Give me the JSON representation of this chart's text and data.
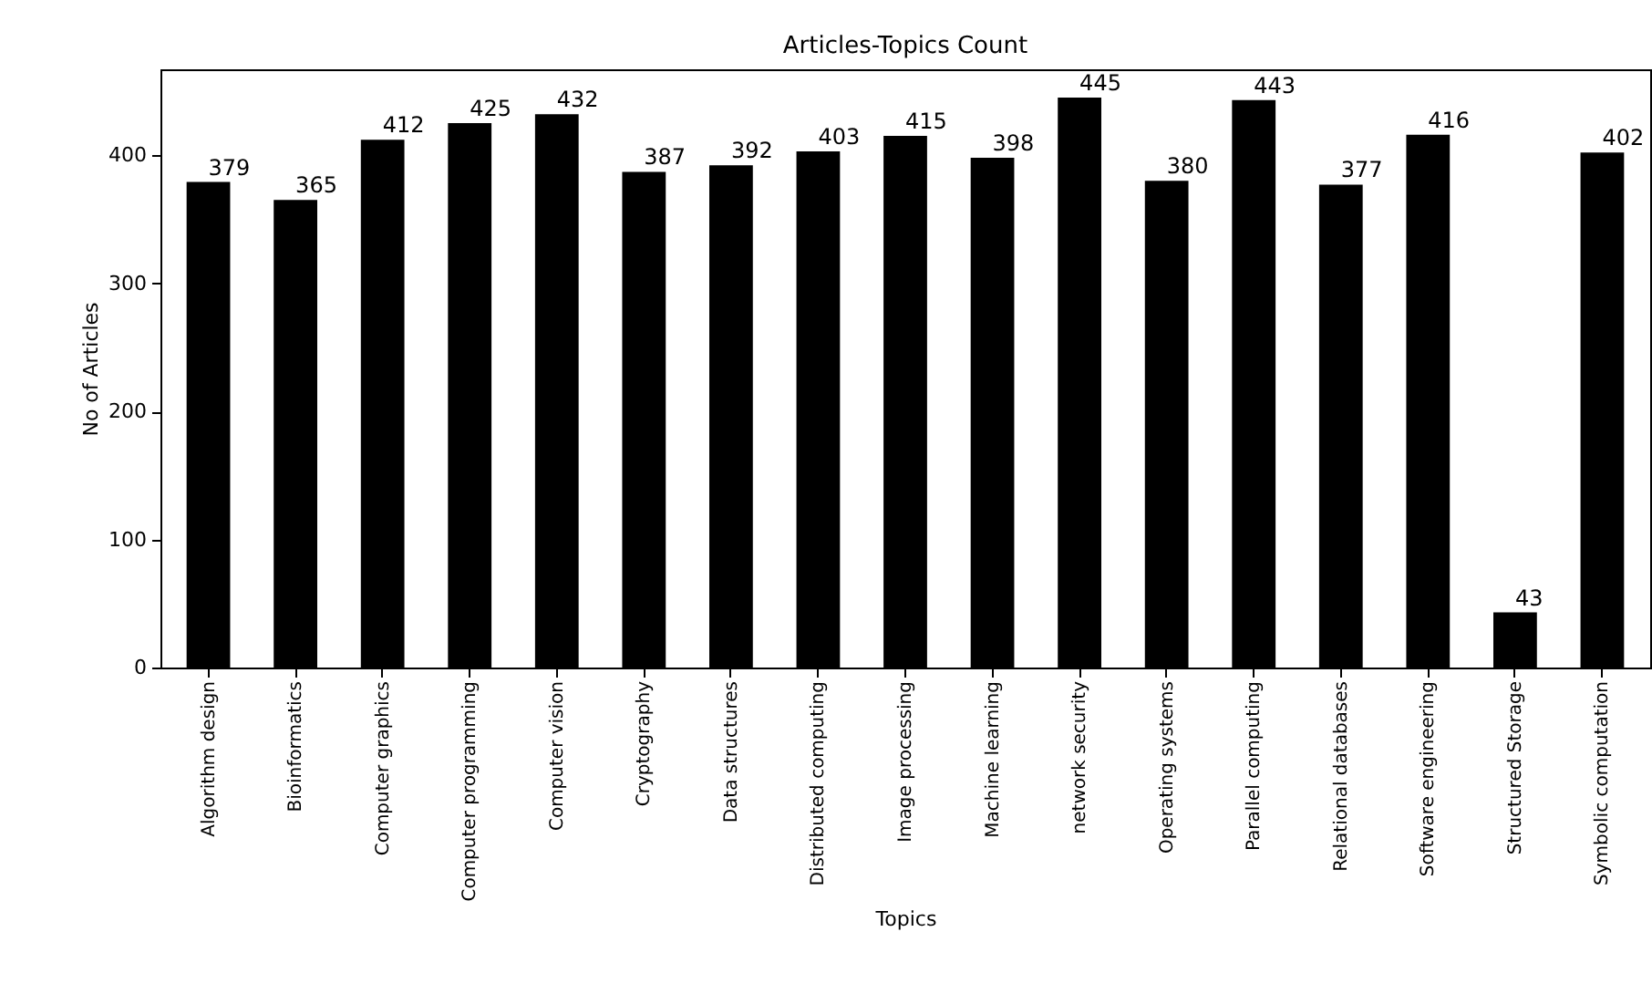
{
  "chart_data": {
    "type": "bar",
    "title": "Articles-Topics Count",
    "xlabel": "Topics",
    "ylabel": "No of Articles",
    "categories": [
      "Algorithm design",
      "Bioinformatics",
      "Computer graphics",
      "Computer programming",
      "Computer vision",
      "Cryptography",
      "Data structures",
      "Distributed computing",
      "Image processing",
      "Machine learning",
      "network security",
      "Operating systems",
      "Parallel computing",
      "Relational databases",
      "Software engineering",
      "Structured Storage",
      "Symbolic computation"
    ],
    "values": [
      379,
      365,
      412,
      425,
      432,
      387,
      392,
      403,
      415,
      398,
      445,
      380,
      443,
      377,
      416,
      43,
      402
    ],
    "color": "#000000",
    "ylim": [
      0,
      467
    ],
    "yticks": [
      0,
      100,
      200,
      300,
      400
    ],
    "data_labels": true,
    "grid": false
  }
}
